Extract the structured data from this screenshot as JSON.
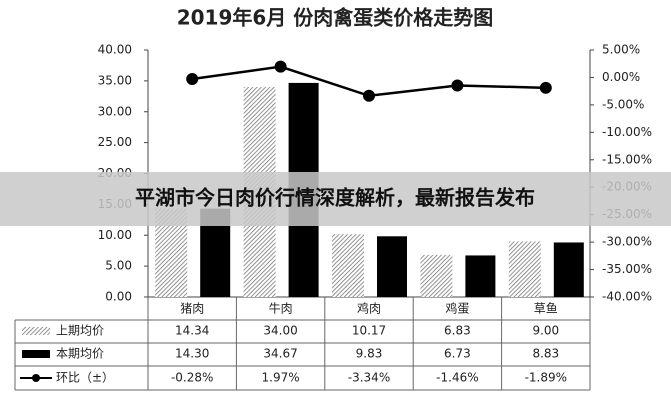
{
  "chart_data": {
    "type": "bar-line",
    "title": "2019年6月 份肉禽蛋类价格走势图",
    "categories": [
      "猪肉",
      "牛肉",
      "鸡肉",
      "鸡蛋",
      "草鱼"
    ],
    "series": [
      {
        "name": "上期均价",
        "type": "bar",
        "color": "#888888",
        "pattern": "hatch",
        "values": [
          14.34,
          34.0,
          10.17,
          6.83,
          9.0
        ],
        "value_labels": [
          "14.34",
          "34.00",
          "10.17",
          "6.83",
          "9.00"
        ]
      },
      {
        "name": "本期均价",
        "type": "bar",
        "color": "#000000",
        "values": [
          14.3,
          34.67,
          9.83,
          6.73,
          8.83
        ],
        "value_labels": [
          "14.30",
          "34.67",
          "9.83",
          "6.73",
          "8.83"
        ]
      },
      {
        "name": "环比（±）",
        "type": "line",
        "axis": "y2",
        "color": "#000000",
        "values": [
          -0.28,
          1.97,
          -3.34,
          -1.46,
          -1.89
        ],
        "value_labels": [
          "-0.28%",
          "1.97%",
          "-3.34%",
          "-1.46%",
          "-1.89%"
        ]
      }
    ],
    "ylim": [
      0,
      40
    ],
    "yticks": [
      {
        "value": 0,
        "label": "0.00"
      },
      {
        "value": 5,
        "label": "5.00"
      },
      {
        "value": 10,
        "label": "10.00"
      },
      {
        "value": 15,
        "label": "15.00"
      },
      {
        "value": 20,
        "label": "20.00"
      },
      {
        "value": 25,
        "label": "25.00"
      },
      {
        "value": 30,
        "label": "30.00"
      },
      {
        "value": 35,
        "label": "35.00"
      },
      {
        "value": 40,
        "label": "40.00"
      }
    ],
    "y2lim": [
      -40,
      5
    ],
    "y2ticks": [
      {
        "value": 5,
        "label": "5.00%"
      },
      {
        "value": 0,
        "label": "0.00%"
      },
      {
        "value": -5,
        "label": "-5.00%"
      },
      {
        "value": -10,
        "label": "-10.00%"
      },
      {
        "value": -15,
        "label": "-15.00%"
      },
      {
        "value": -20,
        "label": "-20.00%"
      },
      {
        "value": -25,
        "label": "-25.00%"
      },
      {
        "value": -30,
        "label": "-30.00%"
      },
      {
        "value": -35,
        "label": "-35.00%"
      },
      {
        "value": -40,
        "label": "-40.00%"
      }
    ],
    "grid": false
  },
  "overlay": {
    "headline": "平湖市今日肉价行情深度解析，最新报告发布"
  }
}
